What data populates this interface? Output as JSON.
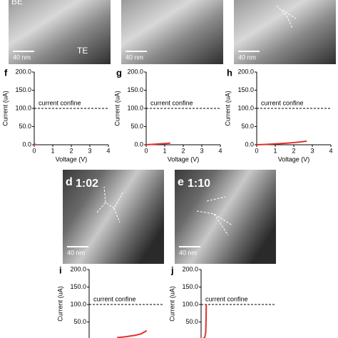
{
  "images": [
    {
      "texts": [
        "BE",
        "TE"
      ],
      "scale": "40 nm"
    },
    {
      "scale": "40 nm"
    },
    {
      "scale": "40 nm"
    },
    {
      "panel": "d",
      "time": "1:02",
      "scale": "40 nm"
    },
    {
      "panel": "e",
      "time": "1:10",
      "scale": "40 nm"
    }
  ],
  "chart_data": [
    {
      "type": "line",
      "panel": "f",
      "ylabel": "Current (uA)",
      "xlabel": "Voltage (V)",
      "annotation": "current confine",
      "confine_level": 100,
      "xlim": [
        0,
        4
      ],
      "xticks": [
        0,
        1,
        2,
        3,
        4
      ],
      "ylim": [
        0,
        200
      ],
      "yticks": [
        {
          "value": 0,
          "label": "0.0"
        },
        {
          "value": 50,
          "label": "50.0"
        },
        {
          "value": 100,
          "label": "100.0"
        },
        {
          "value": 150,
          "label": "150.0"
        },
        {
          "value": 200,
          "label": "200.0"
        }
      ],
      "series": [
        {
          "color": "#e03030",
          "x": [
            0,
            0.05,
            0.1
          ],
          "values": [
            0,
            1,
            1.5
          ]
        }
      ]
    },
    {
      "type": "line",
      "panel": "g",
      "ylabel": "Current (uA)",
      "xlabel": "Voltage (V)",
      "annotation": "current confine",
      "confine_level": 100,
      "xlim": [
        0,
        4
      ],
      "xticks": [
        0,
        1,
        2,
        3,
        4
      ],
      "ylim": [
        0,
        200
      ],
      "yticks": [
        {
          "value": 0,
          "label": "0.0"
        },
        {
          "value": 50,
          "label": "50.0"
        },
        {
          "value": 100,
          "label": "100.0"
        },
        {
          "value": 150,
          "label": "150.0"
        },
        {
          "value": 200,
          "label": "200.0"
        }
      ],
      "series": [
        {
          "color": "#e03030",
          "x": [
            0,
            0.3,
            0.6,
            0.9,
            1.2,
            1.3
          ],
          "values": [
            0,
            1,
            2,
            3,
            4,
            5
          ]
        }
      ]
    },
    {
      "type": "line",
      "panel": "h",
      "ylabel": "Current (uA)",
      "xlabel": "Voltage (V)",
      "annotation": "current confine",
      "confine_level": 100,
      "xlim": [
        0,
        4
      ],
      "xticks": [
        0,
        1,
        2,
        3,
        4
      ],
      "ylim": [
        0,
        200
      ],
      "yticks": [
        {
          "value": 0,
          "label": "0.0"
        },
        {
          "value": 50,
          "label": "50.0"
        },
        {
          "value": 100,
          "label": "100.0"
        },
        {
          "value": 150,
          "label": "150.0"
        },
        {
          "value": 200,
          "label": "200.0"
        }
      ],
      "series": [
        {
          "color": "#e03030",
          "x": [
            0,
            0.5,
            1,
            1.5,
            2,
            2.5,
            2.7
          ],
          "values": [
            0,
            1,
            2.5,
            4,
            6,
            8.5,
            10
          ]
        }
      ]
    },
    {
      "type": "line",
      "panel": "i",
      "ylabel": "Current (uA)",
      "annotation": "current confine",
      "confine_level": 100,
      "xlim": [
        0,
        4
      ],
      "ylim": [
        0,
        200
      ],
      "yticks": [
        {
          "value": 50,
          "label": "50.0"
        },
        {
          "value": 100,
          "label": "100.0"
        },
        {
          "value": 150,
          "label": "150.0"
        },
        {
          "value": 200,
          "label": "200.0"
        }
      ],
      "series": [
        {
          "color": "#e03030",
          "x": [
            1.5,
            2.0,
            2.5,
            2.8,
            3.0,
            3.1
          ],
          "values": [
            5,
            8,
            12,
            16,
            22,
            25
          ]
        }
      ]
    },
    {
      "type": "line",
      "panel": "j",
      "ylabel": "Current (uA)",
      "annotation": "current confine",
      "confine_level": 100,
      "xlim": [
        0,
        4
      ],
      "ylim": [
        0,
        200
      ],
      "yticks": [
        {
          "value": 50,
          "label": "50.0"
        },
        {
          "value": 100,
          "label": "100.0"
        },
        {
          "value": 150,
          "label": "150.0"
        },
        {
          "value": 200,
          "label": "200.0"
        }
      ],
      "series": [
        {
          "color": "#e03030",
          "x": [
            0,
            0.1,
            0.2,
            0.25,
            0.27,
            0.28
          ],
          "values": [
            0,
            2,
            6,
            20,
            60,
            100
          ]
        }
      ]
    }
  ]
}
